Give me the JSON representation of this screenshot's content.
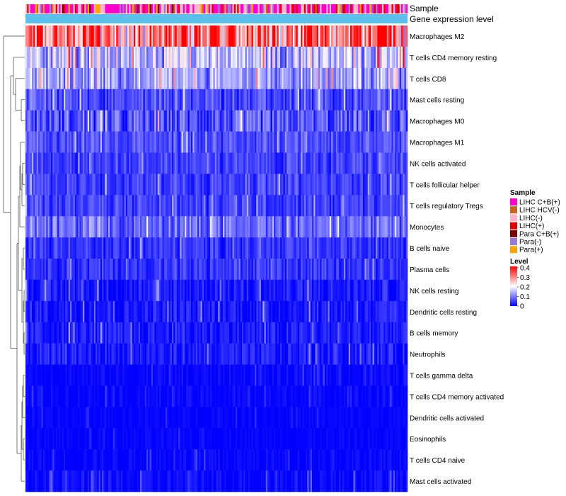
{
  "chart_data": {
    "type": "heatmap",
    "title": "",
    "annotation_tracks": [
      {
        "name": "Sample",
        "label": "Sample"
      },
      {
        "name": "Gene expression level",
        "label": "Gene expression level"
      }
    ],
    "rows": [
      {
        "name": "Macrophages M2",
        "mean": 0.3,
        "spread": 0.09
      },
      {
        "name": "T cells CD4 memory resting",
        "mean": 0.15,
        "spread": 0.07
      },
      {
        "name": "T cells CD8",
        "mean": 0.12,
        "spread": 0.05
      },
      {
        "name": "Mast cells resting",
        "mean": 0.06,
        "spread": 0.04
      },
      {
        "name": "Macrophages M0",
        "mean": 0.06,
        "spread": 0.06
      },
      {
        "name": "Macrophages M1",
        "mean": 0.06,
        "spread": 0.03
      },
      {
        "name": "NK cells activated",
        "mean": 0.05,
        "spread": 0.03
      },
      {
        "name": "T cells follicular helper",
        "mean": 0.05,
        "spread": 0.03
      },
      {
        "name": "T cells regulatory  Tregs",
        "mean": 0.05,
        "spread": 0.03
      },
      {
        "name": "Monocytes",
        "mean": 0.08,
        "spread": 0.04
      },
      {
        "name": "B cells naive",
        "mean": 0.04,
        "spread": 0.03
      },
      {
        "name": "Plasma cells",
        "mean": 0.04,
        "spread": 0.03
      },
      {
        "name": "NK cells resting",
        "mean": 0.02,
        "spread": 0.03
      },
      {
        "name": "Dendritic cells resting",
        "mean": 0.02,
        "spread": 0.03
      },
      {
        "name": "B cells memory",
        "mean": 0.02,
        "spread": 0.03
      },
      {
        "name": "Neutrophils",
        "mean": 0.02,
        "spread": 0.03
      },
      {
        "name": "T cells gamma delta",
        "mean": 0.005,
        "spread": 0.015
      },
      {
        "name": "T cells CD4 memory activated",
        "mean": 0.005,
        "spread": 0.015
      },
      {
        "name": "Dendritic cells activated",
        "mean": 0.003,
        "spread": 0.01
      },
      {
        "name": "Eosinophils",
        "mean": 0.003,
        "spread": 0.01
      },
      {
        "name": "T cells CD4 naive",
        "mean": 0.005,
        "spread": 0.015
      },
      {
        "name": "Mast cells activated",
        "mean": 0.008,
        "spread": 0.02
      }
    ],
    "columns_count": 240,
    "legend_sample": {
      "title": "Sample",
      "entries": [
        {
          "label": "LIHC C+B(+)",
          "color": "#ff00cc"
        },
        {
          "label": "LIHC HCV(-)",
          "color": "#c8641e"
        },
        {
          "label": "LIHC(-)",
          "color": "#ffb6c8"
        },
        {
          "label": "LIHC(+)",
          "color": "#e00000"
        },
        {
          "label": "Para C+B(+)",
          "color": "#7a0000"
        },
        {
          "label": "Para(-)",
          "color": "#9a7ad6"
        },
        {
          "label": "Para(+)",
          "color": "#ffa500"
        }
      ]
    },
    "legend_level": {
      "title": "Level",
      "ticks": [
        "0.4",
        "0.3",
        "0.2",
        "0.1",
        "0"
      ],
      "range": [
        0,
        0.4
      ],
      "colors": {
        "low": "#0000ff",
        "mid": "#ffffff",
        "high": "#ff0000"
      }
    },
    "gene_expression_level_color": "#5bc0eb"
  }
}
